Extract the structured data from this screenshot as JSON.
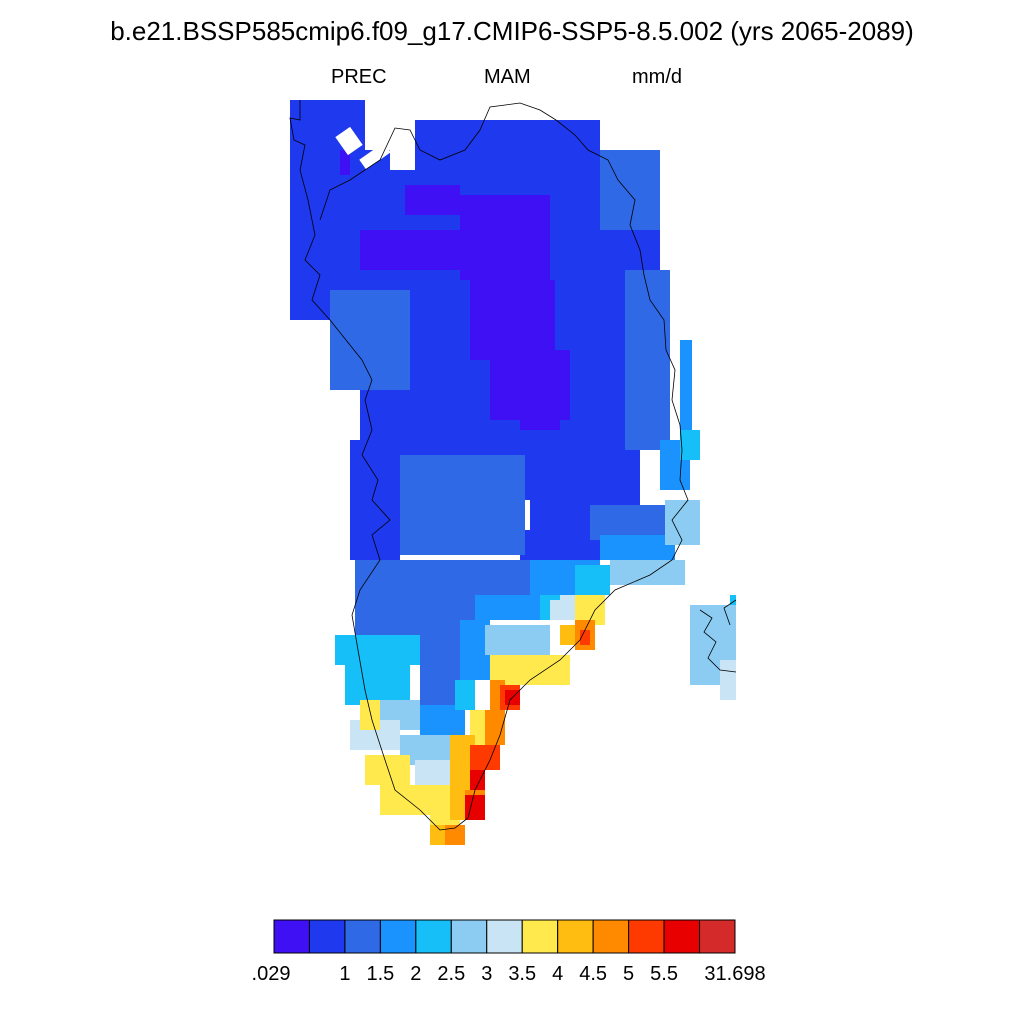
{
  "title": "b.e21.BSSP585cmip6.f09_g17.CMIP6-SSP5-8.5.002 (yrs 2065-2089)",
  "variable": "PREC",
  "season": "MAM",
  "units": "mm/d",
  "colorbar": {
    "colors": [
      "#3f10f4",
      "#1f39ee",
      "#3069e6",
      "#1b93ff",
      "#16bff7",
      "#8ccbf2",
      "#c9e5f5",
      "#ffe94d",
      "#ffbd12",
      "#ff8a00",
      "#ff3a00",
      "#e80000",
      "#d42a2a"
    ],
    "labels": [
      ".029",
      "1",
      "1.5",
      "2",
      "2.5",
      "3",
      "3.5",
      "4",
      "4.5",
      "5",
      "5.5",
      "31.698"
    ]
  }
}
